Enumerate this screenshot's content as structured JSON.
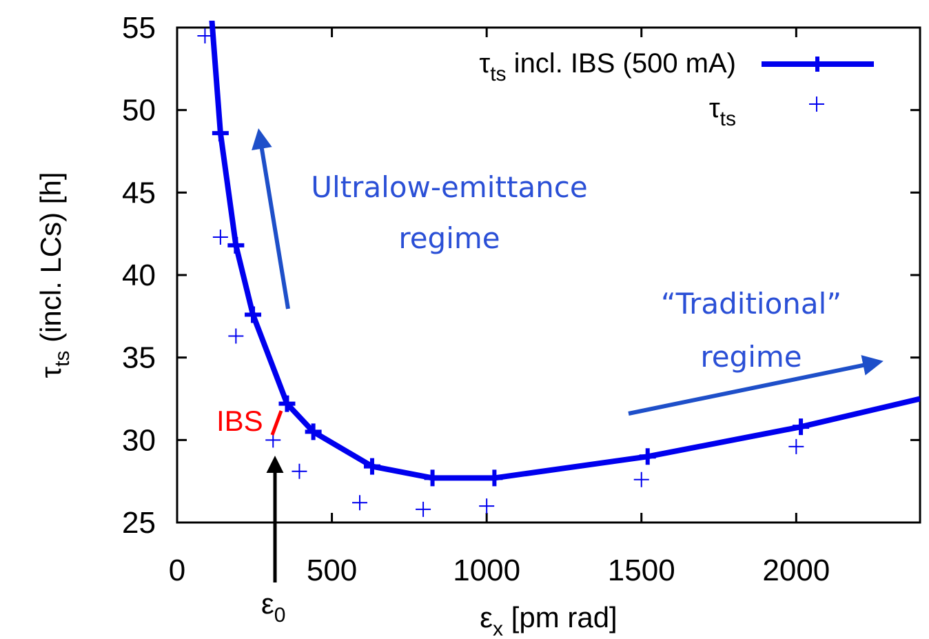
{
  "colors": {
    "series": "#0000ee",
    "annotation_blue": "#2a4fd6",
    "ibs_red": "#ff0000",
    "axis": "#000000"
  },
  "chart_data": {
    "type": "line",
    "xlabel": {
      "main": "ε",
      "sub": "x",
      "rest": " [pm rad]"
    },
    "ylabel": {
      "main": "τ",
      "sub": "ts",
      "rest": " (incl. LCs) [h]"
    },
    "xlim": [
      0,
      2400
    ],
    "ylim": [
      25,
      55
    ],
    "x_ticks": [
      0,
      500,
      1000,
      1500,
      2000
    ],
    "y_ticks": [
      25,
      30,
      35,
      40,
      45,
      50,
      55
    ],
    "grid": false,
    "legend_position": "top-right",
    "series": [
      {
        "legend": {
          "main": "τ",
          "sub": "ts",
          "rest": " incl. IBS (500 mA)"
        },
        "style": "line+marker",
        "x": [
          140,
          190,
          245,
          355,
          440,
          630,
          825,
          1025,
          1520,
          2015
        ],
        "y": [
          48.6,
          41.8,
          37.6,
          32.2,
          30.5,
          28.4,
          27.7,
          27.7,
          29.0,
          30.8
        ],
        "curve_extension": {
          "x_start": 110,
          "y_start": 56,
          "x_end": 2400,
          "y_end": 32.5
        }
      },
      {
        "legend": {
          "main": "τ",
          "sub": "ts",
          "rest": ""
        },
        "style": "marker",
        "x": [
          90,
          140,
          190,
          310,
          395,
          590,
          795,
          1000,
          1500,
          2000
        ],
        "y": [
          54.5,
          42.3,
          36.3,
          30.0,
          28.1,
          26.2,
          25.8,
          26.0,
          27.6,
          29.6
        ]
      }
    ],
    "annotations": {
      "ultralow_line1": "Ultralow-emittance",
      "ultralow_line2": "regime",
      "traditional_line1": "“Traditional”",
      "traditional_line2": "regime",
      "ibs_label": "IBS",
      "eps0": {
        "main": "ε",
        "sub": "0"
      }
    }
  }
}
